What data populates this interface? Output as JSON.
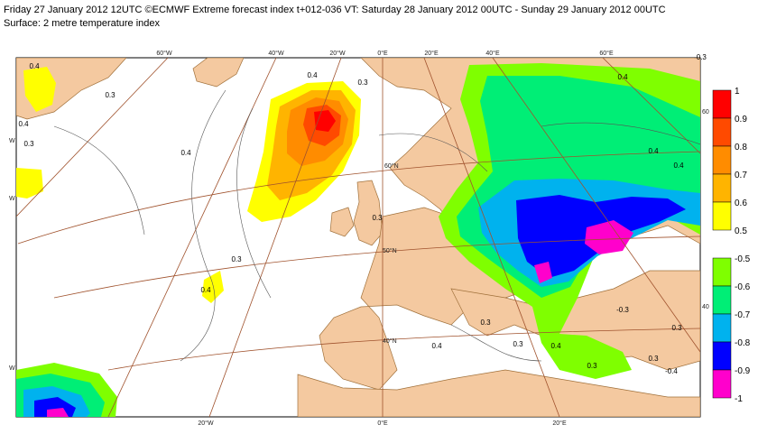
{
  "title_line1": "Friday 27 January 2012 12UTC ©ECMWF Extreme forecast index t+012-036 VT: Saturday 28 January 2012 00UTC - Sunday 29 January 2012 00UTC",
  "title_line2": "Surface: 2 metre temperature index",
  "colors": {
    "land": "#f4c9a0",
    "sea": "#ffffff",
    "coast": "#a0703a",
    "graticule": "#a0522d",
    "contour": "#555555"
  },
  "legend_warm": {
    "labels": [
      "1",
      "0.9",
      "0.8",
      "0.7",
      "0.6",
      "0.5"
    ],
    "colors": [
      "#ff0000",
      "#ff4a00",
      "#ff8c00",
      "#ffb400",
      "#ffff00"
    ]
  },
  "legend_cold": {
    "labels": [
      "-0.5",
      "-0.6",
      "-0.7",
      "-0.8",
      "-0.9",
      "-1"
    ],
    "colors": [
      "#7fff00",
      "#00ee76",
      "#00b2ee",
      "#0000ff",
      "#ff00cc"
    ]
  },
  "top_axis_labels": [
    "60°W",
    "40°W",
    "20°W",
    "0°E",
    "20°E",
    "40°E",
    "60°E"
  ],
  "bottom_axis_labels": [
    "20°W",
    "0°E",
    "20°E"
  ],
  "left_axis_labels": [
    "W",
    "W",
    "W"
  ],
  "right_axis_labels": [
    "60",
    "40"
  ],
  "lat_labels": [
    "60°N",
    "50°N",
    "40°N"
  ],
  "contour_labels": [
    "0.4",
    "0.3",
    "0.4",
    "0.3",
    "0.4",
    "0.3",
    "0.4",
    "0.3",
    "0.4",
    "0.3",
    "0.3",
    "0.4",
    "0.3",
    "0.4",
    "-0.3",
    "0.4",
    "0.4",
    "-0.3",
    "0.3",
    "0.4",
    "0.3",
    "-0.4",
    "0.3"
  ]
}
